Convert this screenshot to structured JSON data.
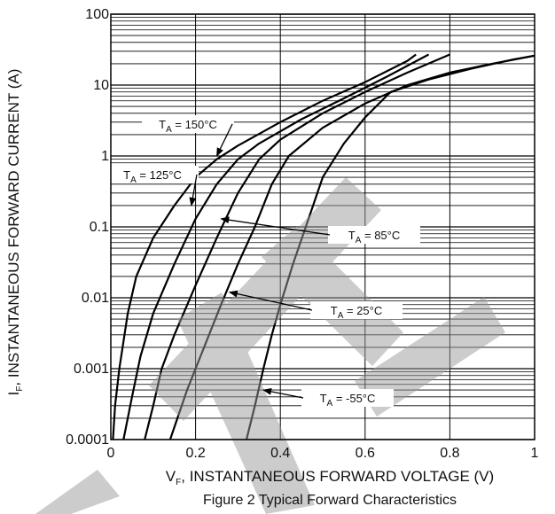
{
  "chart_data": {
    "type": "line",
    "title": "Figure 2 Typical Forward Characteristics",
    "xlabel": {
      "main": "V",
      "sub": "F",
      "rest": ", INSTANTANEOUS FORWARD VOLTAGE (V)"
    },
    "ylabel": {
      "main": "I",
      "sub": "F",
      "rest": ", INSTANTANEOUS FORWARD CURRENT (A)"
    },
    "x_scale": "linear",
    "y_scale": "log",
    "xlim": [
      0,
      1
    ],
    "ylim": [
      0.0001,
      100
    ],
    "grid": true,
    "x_ticks": [
      {
        "v": 0,
        "label": "0"
      },
      {
        "v": 0.2,
        "label": "0.2"
      },
      {
        "v": 0.4,
        "label": "0.4"
      },
      {
        "v": 0.6,
        "label": "0.6"
      },
      {
        "v": 0.8,
        "label": "0.8"
      },
      {
        "v": 1,
        "label": "1"
      }
    ],
    "y_ticks": [
      {
        "v": 0.0001,
        "label": "0.0001"
      },
      {
        "v": 0.001,
        "label": "0.001"
      },
      {
        "v": 0.01,
        "label": "0.01"
      },
      {
        "v": 0.1,
        "label": "0.1"
      },
      {
        "v": 1,
        "label": "1"
      },
      {
        "v": 10,
        "label": "10"
      },
      {
        "v": 100,
        "label": "100"
      }
    ],
    "series": [
      {
        "name": "T_A = 150°C",
        "pre": "T",
        "sub": "A",
        "post": " = 150°C",
        "points": [
          [
            0.005,
            0.0001
          ],
          [
            0.01,
            0.0003
          ],
          [
            0.02,
            0.001
          ],
          [
            0.04,
            0.006
          ],
          [
            0.06,
            0.02
          ],
          [
            0.1,
            0.07
          ],
          [
            0.15,
            0.2
          ],
          [
            0.2,
            0.5
          ],
          [
            0.25,
            0.9
          ],
          [
            0.3,
            1.4
          ],
          [
            0.4,
            3
          ],
          [
            0.5,
            6
          ],
          [
            0.6,
            11
          ],
          [
            0.7,
            22
          ],
          [
            0.72,
            27
          ]
        ]
      },
      {
        "name": "T_A = 125°C",
        "pre": "T",
        "sub": "A",
        "post": " = 125°C",
        "points": [
          [
            0.03,
            0.0001
          ],
          [
            0.05,
            0.0004
          ],
          [
            0.07,
            0.0015
          ],
          [
            0.1,
            0.006
          ],
          [
            0.15,
            0.03
          ],
          [
            0.2,
            0.13
          ],
          [
            0.25,
            0.4
          ],
          [
            0.3,
            0.9
          ],
          [
            0.35,
            1.5
          ],
          [
            0.45,
            3.3
          ],
          [
            0.55,
            6.5
          ],
          [
            0.65,
            13
          ],
          [
            0.75,
            27
          ]
        ]
      },
      {
        "name": "T_A = 85°C",
        "pre": "T",
        "sub": "A",
        "post": " = 85°C",
        "points": [
          [
            0.08,
            0.0001
          ],
          [
            0.1,
            0.0003
          ],
          [
            0.12,
            0.001
          ],
          [
            0.15,
            0.003
          ],
          [
            0.2,
            0.015
          ],
          [
            0.25,
            0.07
          ],
          [
            0.3,
            0.3
          ],
          [
            0.35,
            0.9
          ],
          [
            0.4,
            1.7
          ],
          [
            0.5,
            4
          ],
          [
            0.6,
            8
          ],
          [
            0.7,
            15
          ],
          [
            0.8,
            27
          ]
        ]
      },
      {
        "name": "T_A = 25°C",
        "pre": "T",
        "sub": "A",
        "post": " = 25°C",
        "points": [
          [
            0.14,
            0.0001
          ],
          [
            0.18,
            0.0005
          ],
          [
            0.22,
            0.002
          ],
          [
            0.26,
            0.008
          ],
          [
            0.3,
            0.03
          ],
          [
            0.34,
            0.1
          ],
          [
            0.38,
            0.4
          ],
          [
            0.42,
            1
          ],
          [
            0.5,
            2.5
          ],
          [
            0.6,
            5.5
          ],
          [
            0.7,
            10
          ],
          [
            0.8,
            15
          ],
          [
            0.9,
            20
          ],
          [
            1.0,
            26
          ]
        ]
      },
      {
        "name": "T_A = -55°C",
        "pre": "T",
        "sub": "A",
        "post": " = -55°C",
        "points": [
          [
            0.32,
            0.0001
          ],
          [
            0.34,
            0.0003
          ],
          [
            0.36,
            0.001
          ],
          [
            0.38,
            0.003
          ],
          [
            0.4,
            0.008
          ],
          [
            0.43,
            0.03
          ],
          [
            0.46,
            0.1
          ],
          [
            0.5,
            0.5
          ],
          [
            0.55,
            1.5
          ],
          [
            0.6,
            3.5
          ],
          [
            0.66,
            8
          ],
          [
            0.75,
            12
          ],
          [
            0.85,
            17
          ],
          [
            0.95,
            23
          ],
          [
            1.0,
            26
          ]
        ]
      }
    ],
    "annotations": [
      {
        "series": 0,
        "arrow_to": [
          0.25,
          1.0
        ]
      },
      {
        "series": 1,
        "arrow_to": [
          0.19,
          0.2
        ]
      },
      {
        "series": 2,
        "arrow_to": [
          0.26,
          0.13
        ]
      },
      {
        "series": 3,
        "arrow_to": [
          0.28,
          0.012
        ]
      },
      {
        "series": 4,
        "arrow_to": [
          0.36,
          0.0005
        ]
      }
    ]
  }
}
